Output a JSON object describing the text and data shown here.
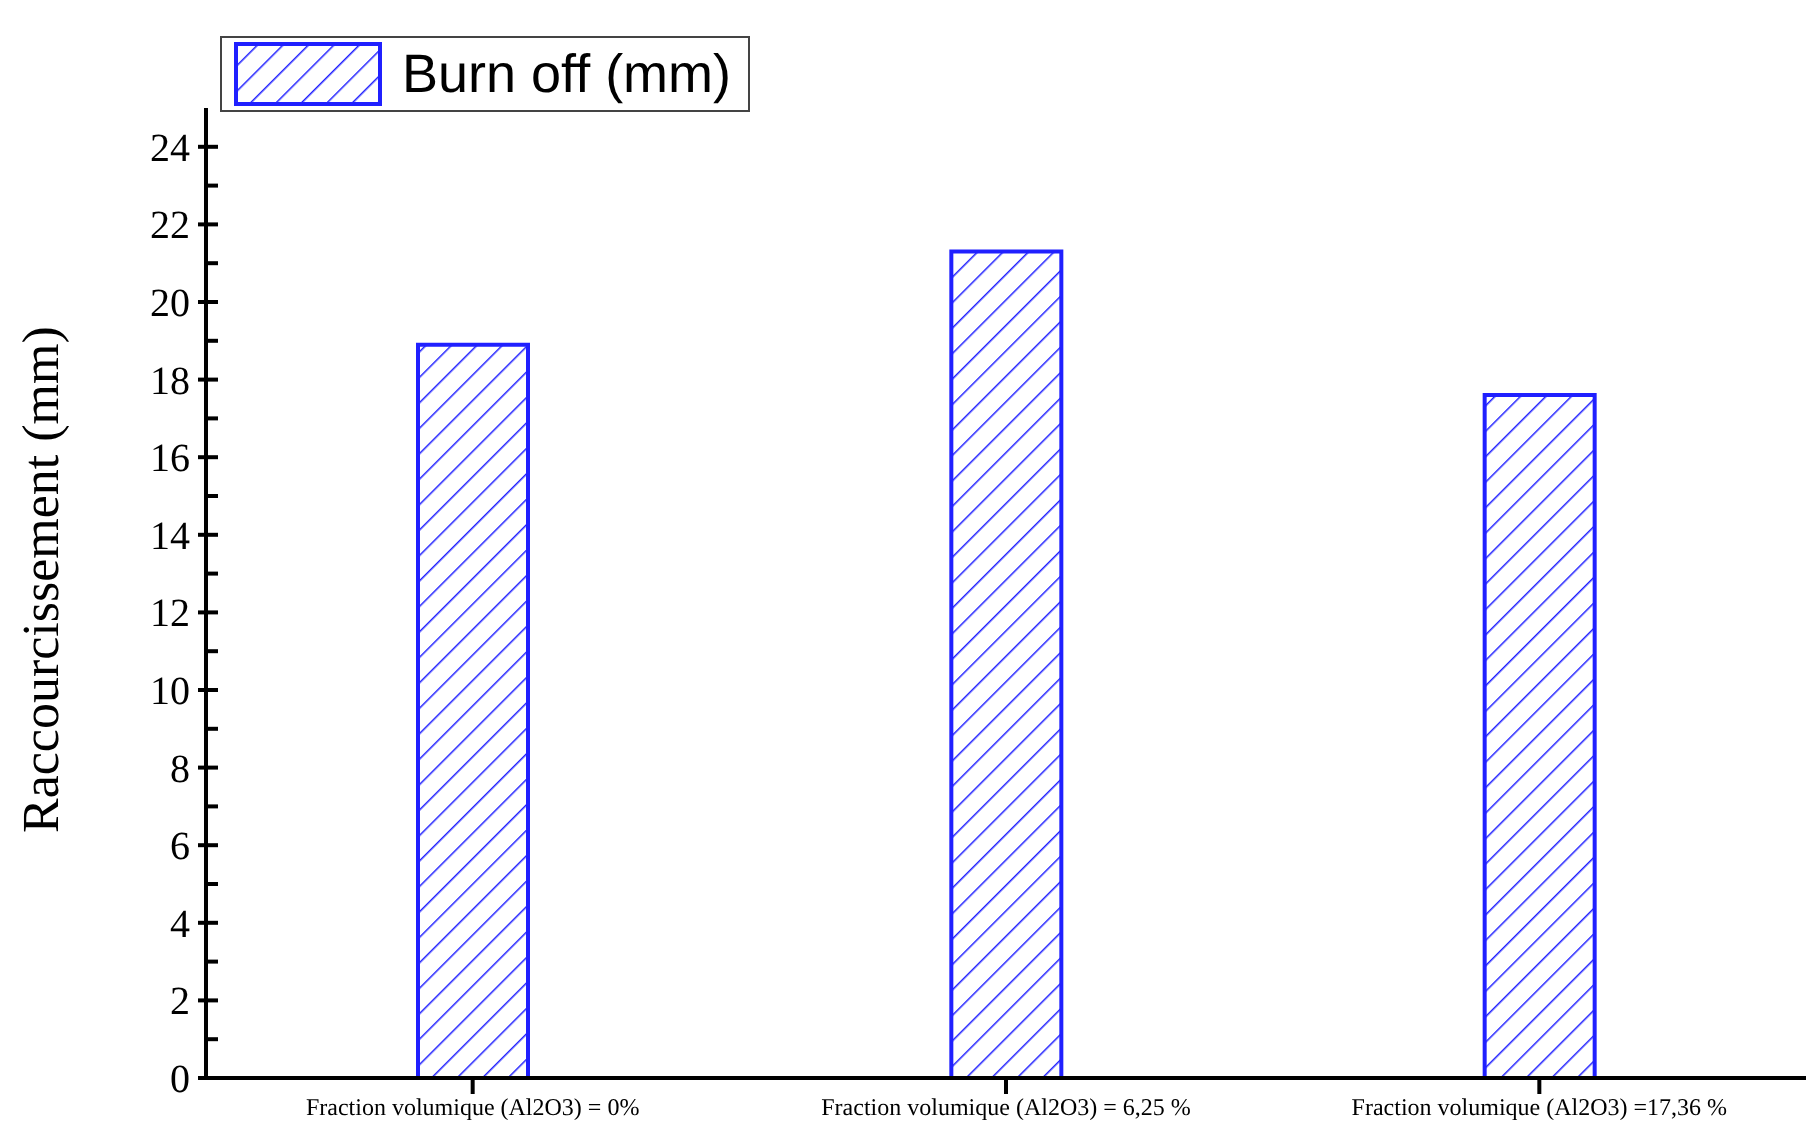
{
  "chart_data": {
    "type": "bar",
    "ylabel": "Raccourcissement (mm)",
    "categories": [
      "Fraction volumique (Al2O3) = 0%",
      "Fraction volumique (Al2O3) = 6,25 %",
      "Fraction volumique (Al2O3) =17,36 %"
    ],
    "series": [
      {
        "name": "Burn off (mm)",
        "color": "#2020ff",
        "values": [
          18.9,
          21.3,
          17.6
        ]
      }
    ],
    "ylim": [
      0,
      25
    ],
    "yticks": [
      0,
      {
        "value": 1,
        "label": null
      },
      2,
      {
        "value": 3,
        "label": null
      },
      4,
      {
        "value": 5,
        "label": null
      },
      6,
      {
        "value": 7,
        "label": null
      },
      8,
      {
        "value": 9,
        "label": null
      },
      10,
      {
        "value": 11,
        "label": null
      },
      12,
      {
        "value": 13,
        "label": null
      },
      14,
      {
        "value": 15,
        "label": null
      },
      16,
      {
        "value": 17,
        "label": null
      },
      18,
      {
        "value": 19,
        "label": null
      },
      20,
      {
        "value": 21,
        "label": null
      },
      22,
      {
        "value": 23,
        "label": null
      },
      24
    ],
    "grid": false,
    "legend": "top left"
  }
}
